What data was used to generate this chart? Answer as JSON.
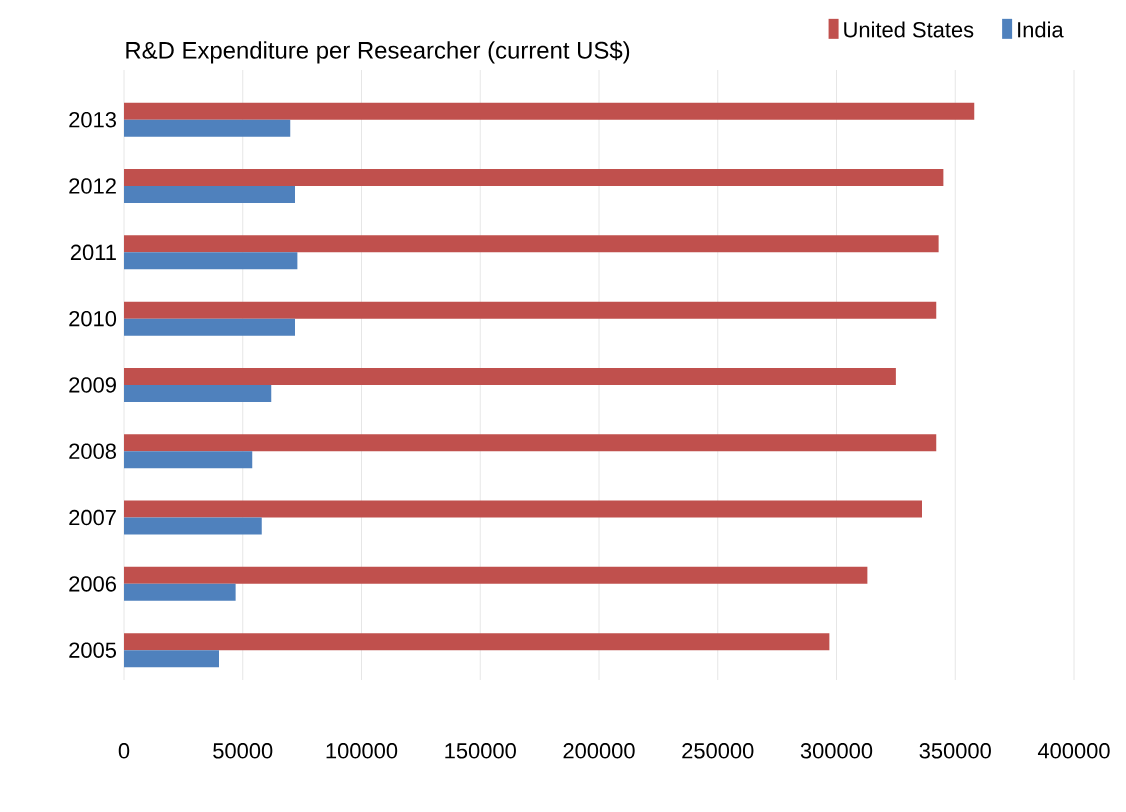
{
  "chart_data": {
    "type": "bar",
    "orientation": "horizontal",
    "title": "R&D Expenditure per Researcher (current US$)",
    "categories": [
      "2013",
      "2012",
      "2011",
      "2010",
      "2009",
      "2008",
      "2007",
      "2006",
      "2005"
    ],
    "series": [
      {
        "name": "United States",
        "color": "#c0504d",
        "values": [
          358000,
          345000,
          343000,
          342000,
          325000,
          342000,
          336000,
          313000,
          297000
        ]
      },
      {
        "name": "India",
        "color": "#4f81bd",
        "values": [
          70000,
          72000,
          73000,
          72000,
          62000,
          54000,
          58000,
          47000,
          40000
        ]
      }
    ],
    "xlim": [
      0,
      400000
    ],
    "xticks": [
      0,
      50000,
      100000,
      150000,
      200000,
      250000,
      300000,
      350000,
      400000
    ],
    "grid": "x",
    "legend": "top right"
  }
}
